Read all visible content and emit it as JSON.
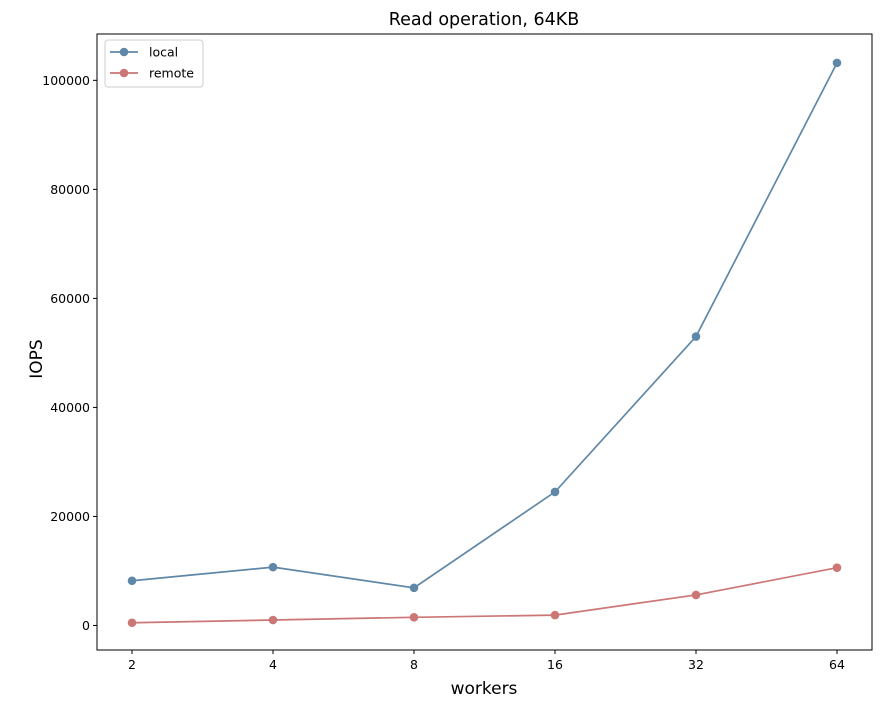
{
  "chart_data": {
    "type": "line",
    "title": "Read operation, 64KB",
    "xlabel": "workers",
    "ylabel": "IOPS",
    "categories": [
      "2",
      "4",
      "8",
      "16",
      "32",
      "64"
    ],
    "ylim": [
      -4500,
      108500
    ],
    "yticks": [
      0,
      20000,
      40000,
      60000,
      80000,
      100000
    ],
    "ytick_labels": [
      "0",
      "20000",
      "40000",
      "60000",
      "80000",
      "100000"
    ],
    "grid": false,
    "legend_position": "upper-left",
    "series": [
      {
        "name": "local",
        "color": "#5f87a8",
        "marker": "circle",
        "values": [
          8200,
          10700,
          6900,
          24500,
          53000,
          103200
        ]
      },
      {
        "name": "remote",
        "color": "#cc7676",
        "marker": "circle",
        "values": [
          500,
          1000,
          1500,
          1900,
          5600,
          10600
        ]
      }
    ]
  }
}
